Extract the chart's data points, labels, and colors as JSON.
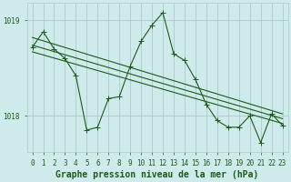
{
  "title": "Graphe pression niveau de la mer (hPa)",
  "background_color": "#ceeaea",
  "grid_color": "#a8cccc",
  "line_color": "#1a5c1a",
  "xlim": [
    -0.5,
    23.5
  ],
  "ylim": [
    1017.62,
    1019.18
  ],
  "yticks": [
    1018,
    1019
  ],
  "xticks": [
    0,
    1,
    2,
    3,
    4,
    5,
    6,
    7,
    8,
    9,
    10,
    11,
    12,
    13,
    14,
    15,
    16,
    17,
    18,
    19,
    20,
    21,
    22,
    23
  ],
  "main_series": [
    [
      0,
      1018.72
    ],
    [
      1,
      1018.88
    ],
    [
      2,
      1018.7
    ],
    [
      3,
      1018.6
    ],
    [
      4,
      1018.42
    ],
    [
      5,
      1017.85
    ],
    [
      6,
      1017.88
    ],
    [
      7,
      1018.18
    ],
    [
      8,
      1018.2
    ],
    [
      9,
      1018.52
    ],
    [
      10,
      1018.78
    ],
    [
      11,
      1018.95
    ],
    [
      12,
      1019.08
    ],
    [
      13,
      1018.65
    ],
    [
      14,
      1018.58
    ],
    [
      15,
      1018.38
    ],
    [
      16,
      1018.12
    ],
    [
      17,
      1017.95
    ],
    [
      18,
      1017.88
    ],
    [
      19,
      1017.88
    ],
    [
      20,
      1018.0
    ],
    [
      21,
      1017.72
    ],
    [
      22,
      1018.02
    ],
    [
      23,
      1017.9
    ]
  ],
  "trend_lines": [
    [
      [
        0,
        1018.82
      ],
      [
        23,
        1018.02
      ]
    ],
    [
      [
        0,
        1018.74
      ],
      [
        23,
        1017.97
      ]
    ],
    [
      [
        0,
        1018.67
      ],
      [
        23,
        1017.92
      ]
    ]
  ],
  "marker_size": 4,
  "line_width": 0.8,
  "font_color": "#1a5c1a",
  "title_fontsize": 7.0,
  "tick_fontsize": 5.5
}
